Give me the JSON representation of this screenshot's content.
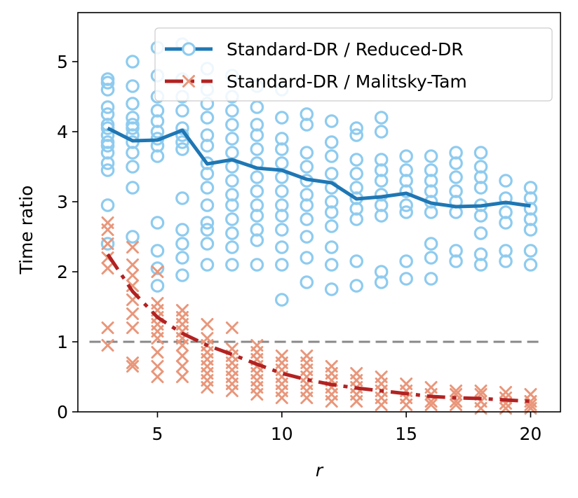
{
  "chart_data": {
    "type": "scatter+line",
    "title": "",
    "xlabel": "r",
    "ylabel": "Time ratio",
    "xlim": [
      1.8,
      21.2
    ],
    "ylim": [
      0,
      5.7
    ],
    "x_ticks": [
      5,
      10,
      15,
      20
    ],
    "y_ticks": [
      0,
      1,
      2,
      3,
      4,
      5
    ],
    "reference_line": {
      "y": 1,
      "style": "dashed",
      "color": "#888888"
    },
    "legend": {
      "position": "top-right",
      "entries": [
        "Standard-DR / Reduced-DR",
        "Standard-DR / Malitsky-Tam"
      ]
    },
    "series": [
      {
        "name": "Standard-DR / Reduced-DR",
        "line_color": "#1f77b4",
        "marker": "circle",
        "marker_color": "#8ecbef",
        "mean_line": {
          "style": "solid",
          "x": [
            3,
            4,
            5,
            6,
            7,
            8,
            9,
            10,
            11,
            12,
            13,
            14,
            15,
            16,
            17,
            18,
            19,
            20
          ],
          "y": [
            4.05,
            3.87,
            3.88,
            4.02,
            3.54,
            3.6,
            3.48,
            3.45,
            3.32,
            3.27,
            3.04,
            3.07,
            3.12,
            2.98,
            2.93,
            2.94,
            2.99,
            2.94
          ]
        },
        "trials": [
          [
            2.95,
            3.45,
            3.55,
            3.7,
            3.8,
            3.85,
            3.95,
            4.05,
            4.1,
            4.25,
            4.35,
            4.6,
            4.7,
            4.75,
            2.4
          ],
          [
            2.5,
            3.2,
            3.5,
            3.7,
            3.85,
            3.95,
            4.05,
            4.1,
            4.2,
            4.4,
            4.65,
            5.0
          ],
          [
            1.8,
            2.05,
            2.3,
            2.7,
            3.65,
            3.8,
            3.9,
            4.0,
            4.15,
            4.3,
            4.5,
            4.8,
            5.2
          ],
          [
            1.95,
            2.2,
            2.4,
            2.6,
            3.05,
            3.75,
            3.85,
            3.95,
            4.05,
            4.3,
            4.5,
            4.75,
            5.25
          ],
          [
            2.1,
            2.4,
            2.6,
            2.7,
            2.95,
            3.2,
            3.4,
            3.55,
            3.8,
            3.95,
            4.2,
            4.4,
            4.6,
            4.9
          ],
          [
            2.1,
            2.35,
            2.55,
            2.75,
            2.95,
            3.1,
            3.3,
            3.5,
            3.7,
            3.9,
            4.1,
            4.3,
            4.5,
            4.8
          ],
          [
            2.1,
            2.45,
            2.6,
            2.8,
            2.95,
            3.15,
            3.35,
            3.55,
            3.75,
            3.95,
            4.1,
            4.35,
            4.65
          ],
          [
            1.6,
            2.1,
            2.35,
            2.6,
            2.8,
            2.95,
            3.15,
            3.35,
            3.55,
            3.75,
            3.9,
            4.2,
            4.6
          ],
          [
            1.85,
            2.2,
            2.5,
            2.75,
            2.95,
            3.1,
            3.3,
            3.5,
            3.7,
            4.1,
            4.25
          ],
          [
            1.75,
            2.1,
            2.35,
            2.65,
            2.85,
            3.0,
            3.2,
            3.4,
            3.65,
            3.85,
            4.15
          ],
          [
            1.8,
            2.15,
            2.75,
            2.9,
            3.05,
            3.2,
            3.4,
            3.6,
            3.95,
            4.05
          ],
          [
            1.85,
            2.0,
            2.8,
            2.95,
            3.1,
            3.3,
            3.45,
            3.6,
            4.0,
            4.2
          ],
          [
            1.9,
            2.15,
            2.85,
            2.95,
            3.15,
            3.3,
            3.45,
            3.65
          ],
          [
            1.9,
            2.2,
            2.4,
            2.85,
            3.0,
            3.15,
            3.3,
            3.45,
            3.65
          ],
          [
            2.15,
            2.3,
            2.85,
            3.0,
            3.15,
            3.35,
            3.55,
            3.7
          ],
          [
            2.1,
            2.25,
            2.55,
            2.8,
            2.95,
            3.2,
            3.35,
            3.5,
            3.7
          ],
          [
            2.15,
            2.3,
            2.7,
            2.85,
            3.05,
            3.3
          ],
          [
            2.1,
            2.3,
            2.6,
            2.75,
            2.9,
            3.05,
            3.2
          ]
        ]
      },
      {
        "name": "Standard-DR / Malitsky-Tam",
        "line_color": "#b22222",
        "marker": "x",
        "marker_color": "#e9967a",
        "mean_line": {
          "style": "dashdot",
          "x": [
            3,
            4,
            5,
            6,
            7,
            8,
            9,
            10,
            11,
            12,
            13,
            14,
            15,
            16,
            17,
            18,
            19,
            20
          ],
          "y": [
            2.25,
            1.72,
            1.35,
            1.12,
            0.95,
            0.82,
            0.68,
            0.55,
            0.46,
            0.39,
            0.34,
            0.3,
            0.26,
            0.22,
            0.2,
            0.19,
            0.17,
            0.15
          ]
        },
        "trials": [
          [
            0.95,
            1.2,
            2.05,
            2.2,
            2.4,
            2.6,
            2.7
          ],
          [
            0.65,
            0.7,
            1.2,
            1.4,
            1.6,
            1.8,
            1.95,
            2.1,
            2.35
          ],
          [
            0.5,
            0.65,
            0.85,
            1.05,
            1.15,
            1.25,
            1.35,
            1.45,
            1.55,
            2.0
          ],
          [
            0.5,
            0.65,
            0.8,
            0.95,
            1.05,
            1.15,
            1.25,
            1.35,
            1.45
          ],
          [
            0.35,
            0.45,
            0.55,
            0.65,
            0.75,
            0.85,
            0.95,
            1.05,
            1.25
          ],
          [
            0.3,
            0.4,
            0.5,
            0.6,
            0.7,
            0.8,
            0.9,
            1.2
          ],
          [
            0.25,
            0.35,
            0.45,
            0.55,
            0.65,
            0.75,
            0.85,
            0.95
          ],
          [
            0.2,
            0.3,
            0.4,
            0.5,
            0.6,
            0.7,
            0.8
          ],
          [
            0.2,
            0.3,
            0.4,
            0.5,
            0.6,
            0.7,
            0.8
          ],
          [
            0.15,
            0.25,
            0.35,
            0.45,
            0.55,
            0.65
          ],
          [
            0.15,
            0.25,
            0.35,
            0.45,
            0.55
          ],
          [
            0.1,
            0.2,
            0.3,
            0.4,
            0.5
          ],
          [
            0.1,
            0.2,
            0.3,
            0.4
          ],
          [
            0.1,
            0.15,
            0.25,
            0.35
          ],
          [
            0.1,
            0.15,
            0.25,
            0.3
          ],
          [
            0.05,
            0.15,
            0.25,
            0.3
          ],
          [
            0.05,
            0.12,
            0.2,
            0.28
          ],
          [
            0.05,
            0.1,
            0.15,
            0.25
          ]
        ]
      }
    ]
  }
}
